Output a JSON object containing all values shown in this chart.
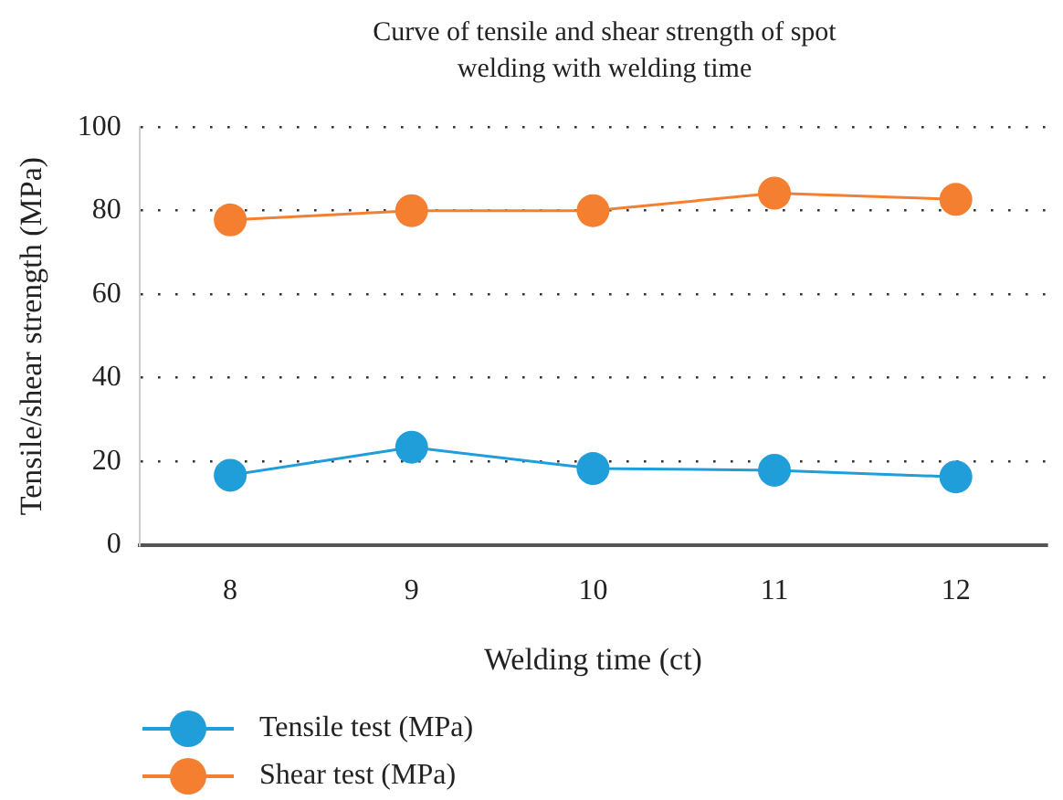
{
  "chart_data": {
    "type": "line",
    "title": "Curve of tensile and shear strength of spot welding with welding time",
    "xlabel": "Welding time (ct)",
    "ylabel": "Tensile/shear strength (MPa)",
    "categories": [
      "8",
      "9",
      "10",
      "11",
      "12"
    ],
    "series": [
      {
        "name": "Tensile test (MPa)",
        "color": "#1f9ed9",
        "values": [
          16.7,
          23.4,
          18.3,
          17.9,
          16.3
        ]
      },
      {
        "name": "Shear test (MPa)",
        "color": "#f47f30",
        "values": [
          77.8,
          80,
          80,
          84.2,
          82.7
        ]
      }
    ],
    "ylim": [
      0,
      100
    ],
    "yticks": [
      0,
      20,
      40,
      60,
      80,
      100
    ],
    "grid": "y",
    "legend": "bottom left",
    "marker": "circle",
    "line_style": "solid"
  }
}
